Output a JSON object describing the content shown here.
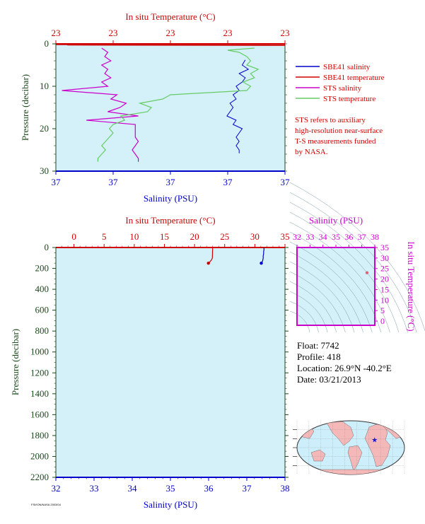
{
  "colors": {
    "plot_bg": "#d4f0f8",
    "sbe41_salinity": "#0000cc",
    "sbe41_temperature": "#d00000",
    "sts_salinity": "#cc00cc",
    "sts_temperature": "#66cc66",
    "axis_red": "#d00000",
    "axis_blue": "#0000cc",
    "axis_green": "#1a4a1a",
    "axis_magenta": "#cc00cc"
  },
  "chart_data": [
    {
      "type": "line",
      "title": "In situ Temperature (°C)",
      "xlabel": "Salinity (PSU)",
      "ylabel": "Pressure (decibar)",
      "top_tick_labels": [
        "23",
        "23",
        "23",
        "23",
        "23"
      ],
      "bottom_tick_labels": [
        "37",
        "37",
        "37",
        "37",
        "37"
      ],
      "y_ticks": [
        0,
        10,
        20,
        30
      ],
      "ylim": [
        30,
        0
      ],
      "temperature_xlim": [
        22.6,
        23.2
      ],
      "salinity_xlim": [
        36.85,
        37.6
      ],
      "legend": [
        "SBE41 salinity",
        "SBE41 temperature",
        "STS salinity",
        "STS temperature"
      ],
      "note": [
        "STS refers to auxiliary",
        "high-resolution near-surface",
        "T-S measurements funded",
        "by NASA."
      ],
      "series": [
        {
          "name": "SBE41 salinity",
          "axis": "salinity",
          "pressure": [
            3.8,
            5,
            6,
            7,
            8,
            9,
            10,
            11,
            12,
            13,
            14,
            15,
            16,
            17,
            18,
            19,
            20,
            21,
            22,
            23,
            24,
            25,
            25.8
          ],
          "values": [
            37.47,
            37.46,
            37.48,
            37.45,
            37.47,
            37.46,
            37.44,
            37.45,
            37.43,
            37.44,
            37.42,
            37.43,
            37.42,
            37.41,
            37.44,
            37.43,
            37.46,
            37.45,
            37.44,
            37.45,
            37.44,
            37.45,
            37.45
          ]
        },
        {
          "name": "SBE41 temperature",
          "axis": "temperature",
          "pressure": [
            0.3,
            0.4
          ],
          "values": [
            22.63,
            23.2
          ]
        },
        {
          "name": "STS salinity",
          "axis": "salinity",
          "pressure": [
            1,
            2,
            3,
            4,
            5,
            6,
            7,
            8,
            9,
            10,
            11,
            12,
            13,
            14,
            15,
            16,
            17,
            18,
            19,
            20,
            21,
            22,
            23,
            24,
            25,
            26,
            27,
            27.8
          ],
          "values": [
            37.0,
            37.02,
            37.01,
            37.03,
            37.0,
            37.02,
            37.01,
            37.03,
            37.0,
            37.02,
            36.87,
            37.05,
            37.03,
            37.08,
            37.06,
            37.02,
            37.12,
            36.95,
            37.11,
            37.11,
            37.11,
            37.11,
            37.12,
            37.11,
            37.1,
            37.11,
            37.12,
            37.12
          ]
        },
        {
          "name": "STS temperature",
          "axis": "temperature",
          "pressure": [
            1,
            1.5,
            2,
            3,
            4,
            5,
            6,
            7,
            8,
            9,
            10,
            11,
            12,
            13,
            14,
            15,
            16,
            17,
            18,
            19,
            20,
            21,
            22,
            23,
            24,
            25,
            26,
            27,
            27.8
          ],
          "values": [
            23.12,
            23.05,
            23.08,
            23.1,
            23.11,
            23.1,
            23.13,
            23.11,
            23.12,
            23.09,
            23.11,
            23.1,
            22.9,
            22.88,
            22.82,
            22.85,
            22.84,
            22.77,
            22.78,
            22.75,
            22.74,
            22.75,
            22.74,
            22.73,
            22.72,
            22.73,
            22.72,
            22.71,
            22.71
          ]
        }
      ]
    },
    {
      "type": "line",
      "title": "In situ Temperature (°C)",
      "xlabel": "Salinity (PSU)",
      "ylabel": "Pressure (decibar)",
      "temperature_ticks": [
        0,
        5,
        10,
        15,
        20,
        25,
        30,
        35
      ],
      "temperature_xlim": [
        -3,
        35
      ],
      "salinity_ticks": [
        32,
        33,
        34,
        35,
        36,
        37,
        38
      ],
      "salinity_xlim": [
        32,
        38
      ],
      "y_ticks": [
        0,
        200,
        400,
        600,
        800,
        1000,
        1200,
        1400,
        1600,
        1800,
        2000,
        2200
      ],
      "ylim": [
        2200,
        0
      ],
      "series": [
        {
          "name": "SBE41 temperature",
          "axis": "temperature",
          "pressure": [
            0,
            20,
            40,
            60,
            80,
            100,
            120,
            140,
            150
          ],
          "values": [
            23.0,
            23.0,
            22.98,
            22.98,
            22.97,
            22.95,
            22.8,
            22.5,
            22.3
          ]
        },
        {
          "name": "SBE41 salinity",
          "axis": "salinity",
          "pressure": [
            0,
            20,
            40,
            60,
            80,
            100,
            120,
            140,
            150
          ],
          "values": [
            37.45,
            37.45,
            37.44,
            37.44,
            37.43,
            37.43,
            37.42,
            37.4,
            37.38
          ]
        }
      ]
    },
    {
      "type": "scatter",
      "title": "Salinity (PSU)",
      "xlabel": "Salinity (PSU)",
      "ylabel": "In situ Temperature (°C)",
      "x_ticks": [
        32,
        33,
        34,
        35,
        36,
        37,
        38
      ],
      "y_ticks": [
        0,
        5,
        10,
        15,
        20,
        25,
        30,
        35
      ],
      "xlim": [
        32,
        38
      ],
      "ylim": [
        -2,
        35
      ],
      "points": [
        {
          "x": 37.4,
          "y": 23.0
        }
      ]
    }
  ],
  "float": {
    "float_line": "Float: 7742",
    "profile_line": "Profile: 418",
    "location_line": "Location: 26.9°N -40.2°E",
    "date_line": "Date: 03/21/2013"
  },
  "map": {
    "marker_lat": 26.9,
    "marker_lon": -40.2,
    "land_color": "#f4b8b8",
    "ocean_color": "#cdeefb"
  },
  "footer_tag": "FSI/ION/NASA 2003/04"
}
